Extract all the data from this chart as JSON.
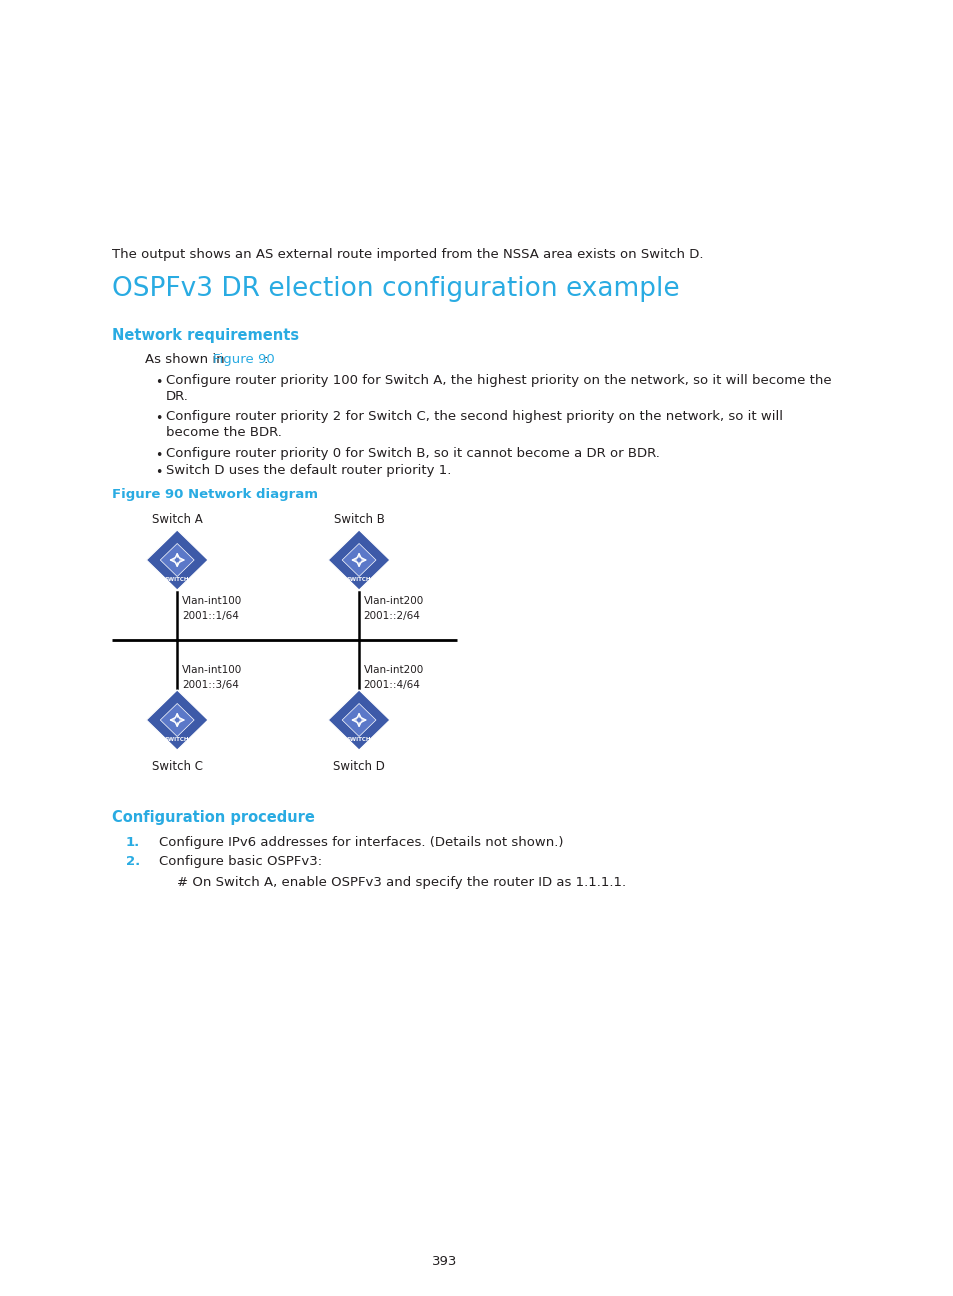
{
  "bg_color": "#ffffff",
  "page_number": "393",
  "intro_text": "The output shows an AS external route imported from the NSSA area exists on Switch D.",
  "main_title": "OSPFv3 DR election configuration example",
  "section1_title": "Network requirements",
  "section1_intro_pre": "As shown in ",
  "section1_link": "Figure 90",
  "section1_intro_post": ":",
  "bullet_wraps": [
    [
      "Configure router priority 100 for Switch A, the highest priority on the network, so it will become the",
      "DR."
    ],
    [
      "Configure router priority 2 for Switch C, the second highest priority on the network, so it will",
      "become the BDR."
    ],
    [
      "Configure router priority 0 for Switch B, so it cannot become a DR or BDR."
    ],
    [
      "Switch D uses the default router priority 1."
    ]
  ],
  "figure_title": "Figure 90 Network diagram",
  "section2_title": "Configuration procedure",
  "proc_item1_num": "1.",
  "proc_item1_text": "Configure IPv6 addresses for interfaces. (Details not shown.)",
  "proc_item2_num": "2.",
  "proc_item2_text": "Configure basic OSPFv3:",
  "sub_text": "# On Switch A, enable OSPFv3 and specify the router ID as 1.1.1.1.",
  "cyan_color": "#29abe2",
  "text_color": "#231f20",
  "link_color": "#29abe2",
  "switch_body_color": "#3d5aa8",
  "switch_highlight_color": "#5b78c8",
  "switch_dark_color": "#2a3d80"
}
